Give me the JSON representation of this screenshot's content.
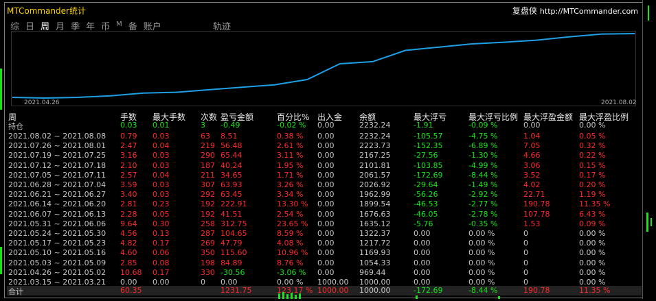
{
  "app_title": "MTCommander统计",
  "brand": {
    "name": "复盘侠",
    "url": "http://MTCommander.com"
  },
  "tabs": [
    "综",
    "日",
    "周",
    "月",
    "季",
    "年",
    "币",
    "M",
    "备",
    "账户"
  ],
  "active_tab": "周",
  "track_label": "轨迹",
  "chart": {
    "start_label": "2021.04.26",
    "end_label": "2021.08.02",
    "line_color": "#1ea0e6",
    "points": [
      969.44,
      956,
      970,
      1000,
      1054.33,
      1070,
      1120,
      1169.93,
      1217.72,
      1322.37,
      1635.12,
      1676.63,
      1899.54,
      1962.99,
      2026.92,
      2061.57,
      2101.81,
      2167.25,
      2223.73,
      2232.24
    ]
  },
  "headers": {
    "period": "周",
    "lots": "手数",
    "max_lots": "最大手数",
    "count": "次数",
    "pnl": "盈亏金额",
    "pct": "百分比%",
    "io": "出入金",
    "balance": "余额",
    "max_float_loss": "最大浮亏",
    "max_float_loss_pct": "最大浮亏比例",
    "max_float_profit": "最大浮盈金额",
    "max_float_profit_pct": "最大浮盈比例"
  },
  "holding_row": [
    "持仓",
    "0.03",
    "0.01",
    "3",
    "-0.49",
    "-0.02 %",
    "0.00",
    "2232.24",
    "-1.91",
    "-0.09 %",
    "0.00",
    "0.00 %"
  ],
  "rows": [
    [
      "2021.08.02 ~ 2021.08.08",
      "0.79",
      "0.03",
      "63",
      "8.51",
      "0.38 %",
      "0.00",
      "2232.24",
      "-105.57",
      "-4.75 %",
      "1.04",
      "0.05 %"
    ],
    [
      "2021.07.26 ~ 2021.08.01",
      "2.47",
      "0.04",
      "219",
      "56.48",
      "2.61 %",
      "0.00",
      "2223.73",
      "-152.35",
      "-6.89 %",
      "7.05",
      "0.32 %"
    ],
    [
      "2021.07.19 ~ 2021.07.25",
      "3.16",
      "0.03",
      "290",
      "65.44",
      "3.11 %",
      "0.00",
      "2167.25",
      "-27.56",
      "-1.30 %",
      "4.66",
      "0.22 %"
    ],
    [
      "2021.07.12 ~ 2021.07.18",
      "2.10",
      "0.03",
      "187",
      "40.24",
      "1.95 %",
      "0.00",
      "2101.81",
      "-103.85",
      "-4.99 %",
      "3.06",
      "0.15 %"
    ],
    [
      "2021.07.05 ~ 2021.07.11",
      "2.57",
      "0.04",
      "211",
      "34.65",
      "1.71 %",
      "0.00",
      "2061.57",
      "-172.69",
      "-8.44 %",
      "3.52",
      "0.17 %"
    ],
    [
      "2021.06.28 ~ 2021.07.04",
      "3.59",
      "0.03",
      "307",
      "63.93",
      "3.26 %",
      "0.00",
      "2026.92",
      "-29.64",
      "-1.49 %",
      "4.02",
      "0.20 %"
    ],
    [
      "2021.06.21 ~ 2021.06.27",
      "3.40",
      "0.03",
      "292",
      "63.45",
      "3.34 %",
      "0.00",
      "1962.99",
      "-56.26",
      "-2.92 %",
      "22.71",
      "1.19 %"
    ],
    [
      "2021.06.14 ~ 2021.06.20",
      "2.81",
      "0.23",
      "192",
      "222.91",
      "13.30 %",
      "0.00",
      "1899.54",
      "-46.53",
      "-2.77 %",
      "190.78",
      "11.35 %"
    ],
    [
      "2021.06.07 ~ 2021.06.13",
      "2.28",
      "0.05",
      "192",
      "41.51",
      "2.54 %",
      "0.00",
      "1676.63",
      "-46.05",
      "-2.78 %",
      "107.78",
      "6.43 %"
    ],
    [
      "2021.05.31 ~ 2021.06.06",
      "9.64",
      "0.30",
      "258",
      "312.75",
      "23.65 %",
      "0.00",
      "1635.12",
      "-5.76",
      "-0.35 %",
      "1.53",
      "0.09 %"
    ],
    [
      "2021.05.24 ~ 2021.05.30",
      "4.56",
      "0.13",
      "287",
      "104.65",
      "8.59 %",
      "0.00",
      "1322.37",
      "0.00",
      "0.00 %",
      "0",
      "0.00 %"
    ],
    [
      "2021.05.17 ~ 2021.05.23",
      "4.82",
      "0.17",
      "269",
      "47.79",
      "4.08 %",
      "0.00",
      "1217.72",
      "0.00",
      "0.00 %",
      "0",
      "0.00 %"
    ],
    [
      "2021.05.10 ~ 2021.05.16",
      "4.60",
      "0.06",
      "350",
      "115.60",
      "10.96 %",
      "0.00",
      "1169.93",
      "0.00",
      "0.00 %",
      "0",
      "0.00 %"
    ],
    [
      "2021.05.03 ~ 2021.05.09",
      "2.85",
      "0.08",
      "198",
      "84.89",
      "8.76 %",
      "0.00",
      "1054.33",
      "0.00",
      "0.00 %",
      "0",
      "0.00 %"
    ],
    [
      "2021.04.26 ~ 2021.05.02",
      "10.68",
      "0.17",
      "330",
      "-30.56",
      "-3.06 %",
      "0.00",
      "969.44",
      "0.00",
      "0.00 %",
      "0",
      "0.00 %"
    ],
    [
      "2021.03.15 ~ 2021.03.21",
      "0.00",
      "0.00",
      "0",
      "0.00",
      "0.00 %",
      "1000.00",
      "1000.00",
      "0.00",
      "0.00 %",
      "0",
      "0.00 %"
    ]
  ],
  "totals": [
    "合计",
    "60.35",
    "",
    "",
    "1231.75",
    "123.17 %",
    "1000.00",
    "1000.00",
    "-172.69",
    "-8.44 %",
    "190.78",
    "11.35 %"
  ],
  "colors": {
    "profit": "#ff2b2b",
    "loss": "#19e619",
    "neutral": "#c8c8c8",
    "title": "#ffd700"
  }
}
